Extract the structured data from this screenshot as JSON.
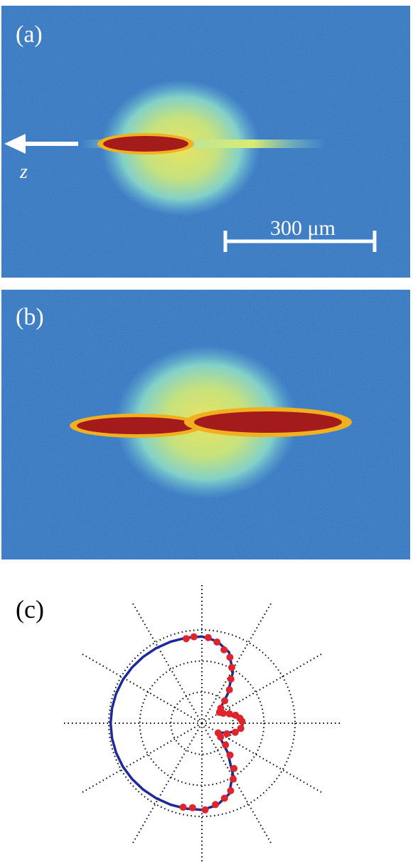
{
  "figure": {
    "panel_a": {
      "label": "(a)",
      "axis_letter": "z",
      "scale_bar": "300 μm"
    },
    "panel_b": {
      "label": "(b)"
    },
    "panel_c": {
      "label": "(c)"
    }
  },
  "colors": {
    "background_blue": "#2f6db8",
    "cloud_cyan": "#7fd3d9",
    "cloud_yellow": "#f2e95a",
    "core_red": "#a31b1b",
    "curve_blue": "#1f2a9a",
    "point_red": "#e0242c",
    "arrow_white": "#ffffff"
  },
  "chart_data": {
    "type": "scatter",
    "title": "",
    "polar": true,
    "rings": 3,
    "spokes_deg": [
      0,
      30,
      60,
      90,
      120,
      150,
      180,
      210,
      240,
      270,
      300,
      330
    ],
    "series": [
      {
        "kind": "fit-curve",
        "color": "#1f2a9a",
        "points": [
          [
            0,
            0.45
          ],
          [
            10,
            0.43
          ],
          [
            20,
            0.32
          ],
          [
            30,
            0.22
          ],
          [
            40,
            0.26
          ],
          [
            50,
            0.44
          ],
          [
            60,
            0.68
          ],
          [
            70,
            0.87
          ],
          [
            80,
            0.96
          ],
          [
            90,
            1.0
          ],
          [
            100,
            1.0
          ],
          [
            110,
            1.0
          ],
          [
            120,
            1.0
          ],
          [
            130,
            1.0
          ],
          [
            140,
            1.0
          ],
          [
            150,
            1.0
          ],
          [
            160,
            1.0
          ],
          [
            170,
            1.0
          ],
          [
            180,
            1.0
          ],
          [
            190,
            1.0
          ],
          [
            200,
            1.0
          ],
          [
            210,
            1.0
          ],
          [
            220,
            1.0
          ],
          [
            230,
            1.0
          ],
          [
            240,
            1.0
          ],
          [
            250,
            1.0
          ],
          [
            260,
            1.0
          ],
          [
            270,
            1.0
          ],
          [
            280,
            0.96
          ],
          [
            290,
            0.87
          ],
          [
            300,
            0.68
          ],
          [
            310,
            0.44
          ],
          [
            320,
            0.26
          ],
          [
            330,
            0.22
          ],
          [
            340,
            0.32
          ],
          [
            350,
            0.43
          ]
        ]
      },
      {
        "kind": "measured",
        "color": "#e0242c",
        "points": [
          [
            3,
            0.44
          ],
          [
            8,
            0.42
          ],
          [
            14,
            0.38
          ],
          [
            20,
            0.32
          ],
          [
            26,
            0.26
          ],
          [
            33,
            0.23
          ],
          [
            40,
            0.27
          ],
          [
            46,
            0.36
          ],
          [
            52,
            0.49
          ],
          [
            58,
            0.6
          ],
          [
            63,
            0.72
          ],
          [
            68,
            0.82
          ],
          [
            74,
            0.88
          ],
          [
            80,
            0.95
          ],
          [
            86,
            0.99
          ],
          [
            95,
            1.0
          ],
          [
            100,
            0.99
          ],
          [
            258,
            0.99
          ],
          [
            264,
            0.98
          ],
          [
            272,
            1.0
          ],
          [
            279,
            0.95
          ],
          [
            286,
            0.9
          ],
          [
            292,
            0.84
          ],
          [
            298,
            0.73
          ],
          [
            304,
            0.63
          ],
          [
            310,
            0.48
          ],
          [
            316,
            0.36
          ],
          [
            322,
            0.26
          ],
          [
            328,
            0.21
          ],
          [
            336,
            0.3
          ],
          [
            344,
            0.38
          ],
          [
            352,
            0.43
          ]
        ]
      }
    ]
  }
}
